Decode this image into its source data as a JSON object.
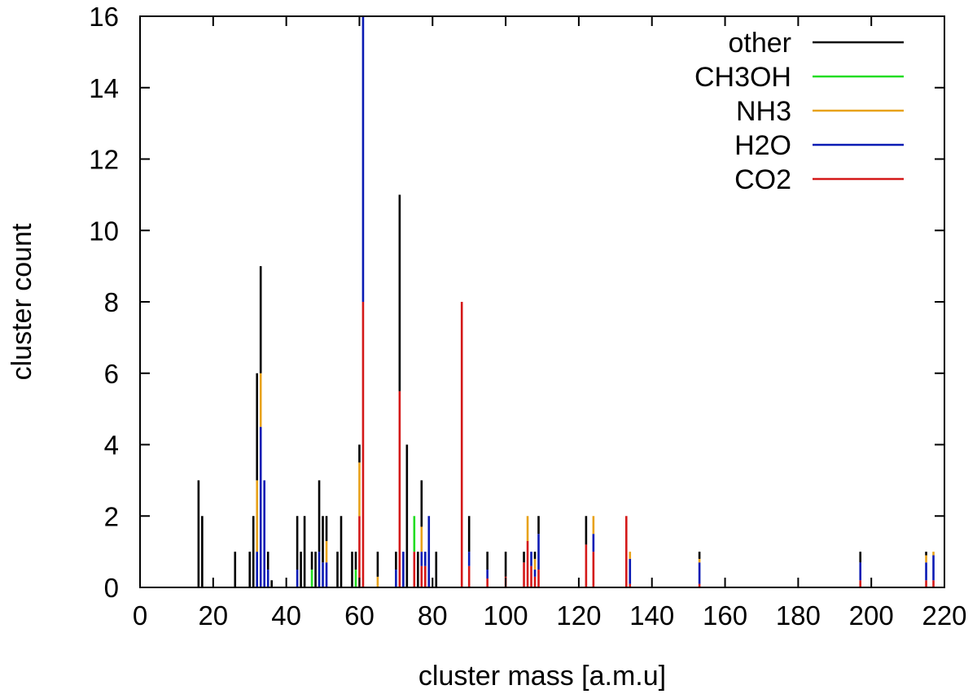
{
  "chart_data": {
    "type": "bar",
    "subtype": "stacked-impulse",
    "title": "",
    "xlabel": "cluster mass [a.m.u]",
    "ylabel": "cluster count",
    "xlim": [
      0,
      220
    ],
    "ylim": [
      0,
      16
    ],
    "xticks": [
      0,
      20,
      40,
      60,
      80,
      100,
      120,
      140,
      160,
      180,
      200,
      220
    ],
    "yticks": [
      0,
      2,
      4,
      6,
      8,
      10,
      12,
      14,
      16
    ],
    "legend_position": "top-right",
    "series": [
      {
        "name": "other",
        "color": "#000000"
      },
      {
        "name": "CH3OH",
        "color": "#22dd22"
      },
      {
        "name": "NH3",
        "color": "#e8a21a"
      },
      {
        "name": "H2O",
        "color": "#0a1ab4"
      },
      {
        "name": "CO2",
        "color": "#d41818"
      }
    ],
    "stack_order_bottom_to_top": [
      "CO2",
      "H2O",
      "NH3",
      "CH3OH",
      "other"
    ],
    "bars": [
      {
        "x": 16,
        "other": 3
      },
      {
        "x": 17,
        "other": 2
      },
      {
        "x": 26,
        "other": 1
      },
      {
        "x": 30,
        "other": 1
      },
      {
        "x": 31,
        "other": 2
      },
      {
        "x": 32,
        "H2O": 1,
        "NH3": 2,
        "other": 3
      },
      {
        "x": 33,
        "H2O": 4.5,
        "NH3": 1.5,
        "other": 3
      },
      {
        "x": 34,
        "H2O": 3
      },
      {
        "x": 35,
        "H2O": 0.5,
        "other": 0.5
      },
      {
        "x": 36,
        "other": 0.2
      },
      {
        "x": 43,
        "H2O": 0.5,
        "other": 1.5
      },
      {
        "x": 44,
        "other": 1
      },
      {
        "x": 45,
        "other": 2
      },
      {
        "x": 47,
        "CH3OH": 0.5,
        "other": 0.5
      },
      {
        "x": 48,
        "other": 1
      },
      {
        "x": 49,
        "H2O": 1,
        "other": 2
      },
      {
        "x": 50,
        "H2O": 0.7,
        "other": 1.3
      },
      {
        "x": 51,
        "H2O": 0.7,
        "NH3": 0.6,
        "other": 0.7
      },
      {
        "x": 54,
        "other": 1
      },
      {
        "x": 55,
        "other": 2
      },
      {
        "x": 58,
        "other": 1
      },
      {
        "x": 59,
        "CH3OH": 0.5,
        "other": 0.5
      },
      {
        "x": 60,
        "CO2": 2,
        "NH3": 1.5,
        "other": 0.5
      },
      {
        "x": 61,
        "CO2": 8,
        "H2O": 8
      },
      {
        "x": 65,
        "NH3": 0.3,
        "other": 0.7
      },
      {
        "x": 70,
        "H2O": 0.5,
        "other": 0.5
      },
      {
        "x": 71,
        "CO2": 5.5,
        "other": 5.5
      },
      {
        "x": 72,
        "H2O": 1
      },
      {
        "x": 73,
        "other": 4
      },
      {
        "x": 75,
        "CO2": 1,
        "CH3OH": 1
      },
      {
        "x": 76,
        "other": 1
      },
      {
        "x": 77,
        "CO2": 0.6,
        "H2O": 0.4,
        "NH3": 0.7,
        "other": 1.3
      },
      {
        "x": 78,
        "CO2": 0.6,
        "H2O": 0.4
      },
      {
        "x": 79,
        "H2O": 2
      },
      {
        "x": 81,
        "other": 1
      },
      {
        "x": 88,
        "CO2": 8
      },
      {
        "x": 90,
        "CO2": 0.6,
        "H2O": 0.4,
        "other": 1
      },
      {
        "x": 95,
        "CO2": 0.25,
        "H2O": 0.25,
        "other": 0.5
      },
      {
        "x": 100,
        "CO2": 0.3,
        "other": 0.7
      },
      {
        "x": 105,
        "CO2": 0.7,
        "other": 0.3
      },
      {
        "x": 106,
        "CO2": 1.3,
        "NH3": 0.7
      },
      {
        "x": 107,
        "CO2": 0.6,
        "H2O": 0.4
      },
      {
        "x": 108,
        "CO2": 0.3,
        "H2O": 0.2,
        "NH3": 0.3,
        "other": 0.2
      },
      {
        "x": 109,
        "CO2": 0.5,
        "H2O": 1,
        "other": 0.5
      },
      {
        "x": 122,
        "CO2": 1.2,
        "other": 0.8
      },
      {
        "x": 124,
        "CO2": 1,
        "H2O": 0.5,
        "NH3": 0.5
      },
      {
        "x": 133,
        "CO2": 2
      },
      {
        "x": 134,
        "CO2": 0.1,
        "H2O": 0.7,
        "NH3": 0.2
      },
      {
        "x": 153,
        "CO2": 0.1,
        "H2O": 0.6,
        "NH3": 0.1,
        "other": 0.2
      },
      {
        "x": 197,
        "CO2": 0.2,
        "H2O": 0.5,
        "other": 0.3
      },
      {
        "x": 215,
        "CO2": 0.2,
        "H2O": 0.5,
        "NH3": 0.2,
        "other": 0.1
      },
      {
        "x": 217,
        "CO2": 0.2,
        "H2O": 0.7,
        "NH3": 0.1
      }
    ]
  }
}
